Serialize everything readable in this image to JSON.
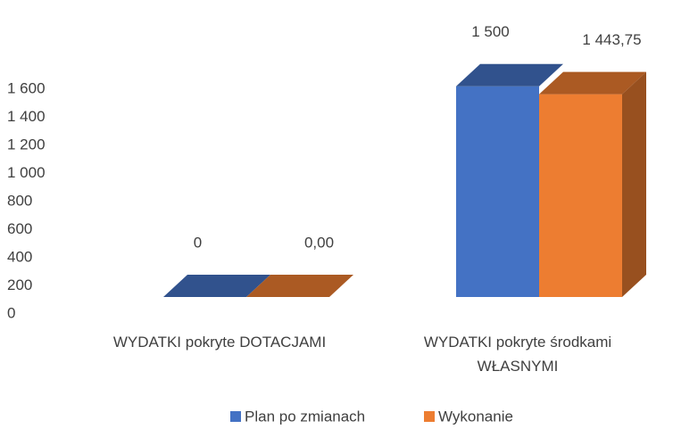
{
  "chart_data": {
    "type": "bar3d",
    "categories": [
      "WYDATKI pokryte DOTACJAMI",
      "WYDATKI pokryte środkami WŁASNYMI"
    ],
    "series": [
      {
        "name": "Plan po zmianach",
        "color": "#4472c4",
        "values": [
          0,
          1500
        ],
        "value_labels": [
          "0",
          "1 500"
        ]
      },
      {
        "name": "Wykonanie",
        "color": "#ed7d31",
        "values": [
          0,
          1443.75
        ],
        "value_labels": [
          "0,00",
          "1 443,75"
        ]
      }
    ],
    "ylim": [
      0,
      1600
    ],
    "yticks": [
      0,
      200,
      400,
      600,
      800,
      {
        "value": 1000,
        "label": "1 000"
      },
      {
        "value": 1200,
        "label": "1 200"
      },
      {
        "value": 1400,
        "label": "1 400"
      },
      {
        "value": 1600,
        "label": "1 600"
      }
    ],
    "legend": "bottom"
  }
}
